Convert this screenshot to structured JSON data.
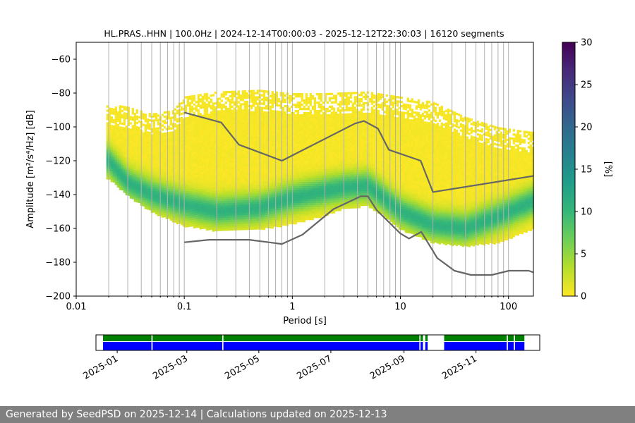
{
  "title": "HL.PRAS..HHN | 100.0Hz | 2024-12-14T00:00:03 - 2025-12-12T22:30:03 | 16120 segments",
  "footer": "Generated by SeedPSD on 2025-12-14 | Calculations updated on 2025-12-13",
  "colors": {
    "nlnm_nhnm": "#666666",
    "data_available": "#0000ff",
    "gaps_ok": "#008000",
    "grid": "#b0b0b0"
  },
  "chart_data": [
    {
      "type": "heatmap",
      "xlabel": "Period [s]",
      "ylabel": "Amplitude [m²/s⁴/Hz] [dB]",
      "xscale": "log",
      "xlim": [
        0.01,
        170
      ],
      "ylim": [
        -200,
        -50
      ],
      "xticks": [
        {
          "value": 0.01,
          "label": "0.01"
        },
        {
          "value": 0.1,
          "label": "0.1"
        },
        {
          "value": 1,
          "label": "1"
        },
        {
          "value": 10,
          "label": "10"
        },
        {
          "value": 100,
          "label": "100"
        }
      ],
      "yticks": [
        {
          "value": -60,
          "label": "−60"
        },
        {
          "value": -80,
          "label": "−80"
        },
        {
          "value": -100,
          "label": "−100"
        },
        {
          "value": -120,
          "label": "−120"
        },
        {
          "value": -140,
          "label": "−140"
        },
        {
          "value": -160,
          "label": "−160"
        },
        {
          "value": -180,
          "label": "−180"
        },
        {
          "value": -200,
          "label": "−200"
        }
      ],
      "grid": "vertical",
      "psd_density": {
        "period_range": [
          0.019,
          170
        ],
        "upper_edge_db": [
          [
            0.02,
            -86
          ],
          [
            0.03,
            -88
          ],
          [
            0.05,
            -92
          ],
          [
            0.08,
            -90
          ],
          [
            0.1,
            -82
          ],
          [
            0.2,
            -79
          ],
          [
            0.5,
            -78
          ],
          [
            1,
            -80
          ],
          [
            2,
            -80
          ],
          [
            5,
            -79
          ],
          [
            10,
            -82
          ],
          [
            20,
            -85
          ],
          [
            40,
            -94
          ],
          [
            80,
            -100
          ],
          [
            170,
            -103
          ]
        ],
        "mode_db": [
          [
            0.02,
            -120
          ],
          [
            0.03,
            -133
          ],
          [
            0.05,
            -140
          ],
          [
            0.1,
            -146
          ],
          [
            0.2,
            -150
          ],
          [
            0.5,
            -148
          ],
          [
            1,
            -142
          ],
          [
            2,
            -138
          ],
          [
            3,
            -136
          ],
          [
            5,
            -135
          ],
          [
            7,
            -142
          ],
          [
            10,
            -150
          ],
          [
            20,
            -158
          ],
          [
            40,
            -160
          ],
          [
            80,
            -153
          ],
          [
            170,
            -144
          ]
        ],
        "lower_edge_db": [
          [
            0.02,
            -130
          ],
          [
            0.03,
            -140
          ],
          [
            0.05,
            -150
          ],
          [
            0.1,
            -158
          ],
          [
            0.2,
            -161
          ],
          [
            0.5,
            -160
          ],
          [
            1,
            -157
          ],
          [
            2,
            -152
          ],
          [
            3,
            -148
          ],
          [
            5,
            -146
          ],
          [
            7,
            -152
          ],
          [
            10,
            -160
          ],
          [
            20,
            -168
          ],
          [
            40,
            -170
          ],
          [
            80,
            -168
          ],
          [
            170,
            -160
          ]
        ]
      },
      "series": [
        {
          "values": [
            [
              0.1,
              -91.5
            ],
            [
              0.22,
              -97.4
            ],
            [
              0.32,
              -110.5
            ],
            [
              0.8,
              -120
            ],
            [
              3.8,
              -98
            ],
            [
              4.6,
              -96.5
            ],
            [
              6.2,
              -101
            ],
            [
              7.8,
              -113.5
            ],
            [
              15.4,
              -120
            ],
            [
              20,
              -138.5
            ],
            [
              170,
              -129
            ]
          ]
        },
        {
          "values": [
            [
              0.1,
              -168.2
            ],
            [
              0.17,
              -166.7
            ],
            [
              0.4,
              -166.7
            ],
            [
              0.8,
              -169.2
            ],
            [
              1.24,
              -163.7
            ],
            [
              2.4,
              -148.6
            ],
            [
              4.3,
              -141
            ],
            [
              5,
              -141
            ],
            [
              6,
              -149
            ],
            [
              10,
              -163
            ],
            [
              12,
              -166
            ],
            [
              15.6,
              -162
            ],
            [
              21.9,
              -177.5
            ],
            [
              31.6,
              -185
            ],
            [
              45,
              -187.5
            ],
            [
              70,
              -187.5
            ],
            [
              101,
              -185
            ],
            [
              154,
              -185
            ],
            [
              170,
              -186
            ]
          ]
        }
      ]
    },
    {
      "type": "bar",
      "title": "",
      "colorbar_label": "[%]",
      "ylim": [
        0,
        30
      ],
      "ticks": [
        {
          "value": 0,
          "label": "0"
        },
        {
          "value": 5,
          "label": "5"
        },
        {
          "value": 10,
          "label": "10"
        },
        {
          "value": 15,
          "label": "15"
        },
        {
          "value": 20,
          "label": "20"
        },
        {
          "value": 25,
          "label": "25"
        },
        {
          "value": 30,
          "label": "30"
        }
      ],
      "colormap": [
        "#fde725",
        "#b5de2b",
        "#6ece58",
        "#35b779",
        "#1f9e89",
        "#26828e",
        "#31688e",
        "#3e4989",
        "#482878",
        "#440154"
      ]
    },
    {
      "type": "bar",
      "xlim": [
        "2024-12-14",
        "2025-12-25"
      ],
      "xticks": [
        {
          "value": "2025-01-01",
          "label": "2025-01"
        },
        {
          "value": "2025-03-01",
          "label": "2025-03"
        },
        {
          "value": "2025-05-01",
          "label": "2025-05"
        },
        {
          "value": "2025-07-01",
          "label": "2025-07"
        },
        {
          "value": "2025-09-01",
          "label": "2025-09"
        },
        {
          "value": "2025-11-01",
          "label": "2025-11"
        }
      ],
      "available_intervals": [
        [
          "2024-12-20",
          "2025-01-30"
        ],
        [
          "2025-01-31",
          "2025-03-31"
        ],
        [
          "2025-04-01",
          "2025-09-14"
        ],
        [
          "2025-09-15",
          "2025-09-17"
        ],
        [
          "2025-09-19",
          "2025-09-21"
        ],
        [
          "2025-10-05",
          "2025-11-27"
        ],
        [
          "2025-11-28",
          "2025-12-03"
        ],
        [
          "2025-12-04",
          "2025-12-12"
        ]
      ]
    }
  ]
}
